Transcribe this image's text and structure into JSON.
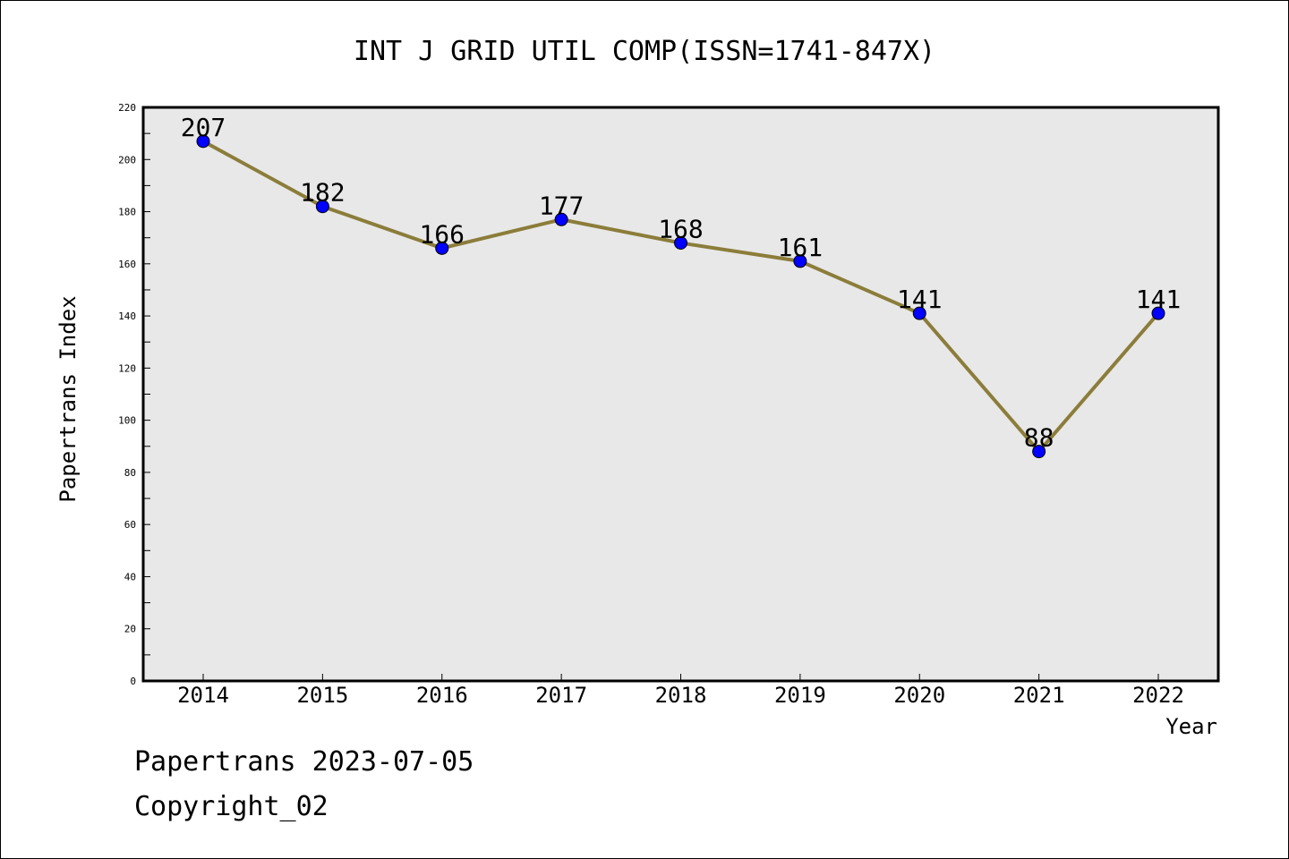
{
  "chart_data": {
    "type": "line",
    "title": "INT J GRID UTIL COMP(ISSN=1741-847X)",
    "xlabel": "Year",
    "ylabel": "Papertrans Index",
    "categories": [
      "2014",
      "2015",
      "2016",
      "2017",
      "2018",
      "2019",
      "2020",
      "2021",
      "2022"
    ],
    "series": [
      {
        "values": [
          207,
          182,
          166,
          177,
          168,
          161,
          141,
          88,
          141
        ]
      }
    ],
    "data_labels": [
      "207",
      "182",
      "166",
      "177",
      "168",
      "161",
      "141",
      "88",
      "141"
    ],
    "ylim": [
      0,
      220
    ],
    "yticks": [
      0,
      20,
      40,
      60,
      80,
      100,
      120,
      140,
      160,
      180,
      200,
      220
    ],
    "grid": false,
    "legend": "none",
    "colors": {
      "line": "#8B7D3A",
      "marker": "#0000FF",
      "plot_background": "#E8E8E8"
    }
  },
  "footer": {
    "line1": "Papertrans 2023-07-05",
    "line2": "Copyright_02"
  }
}
